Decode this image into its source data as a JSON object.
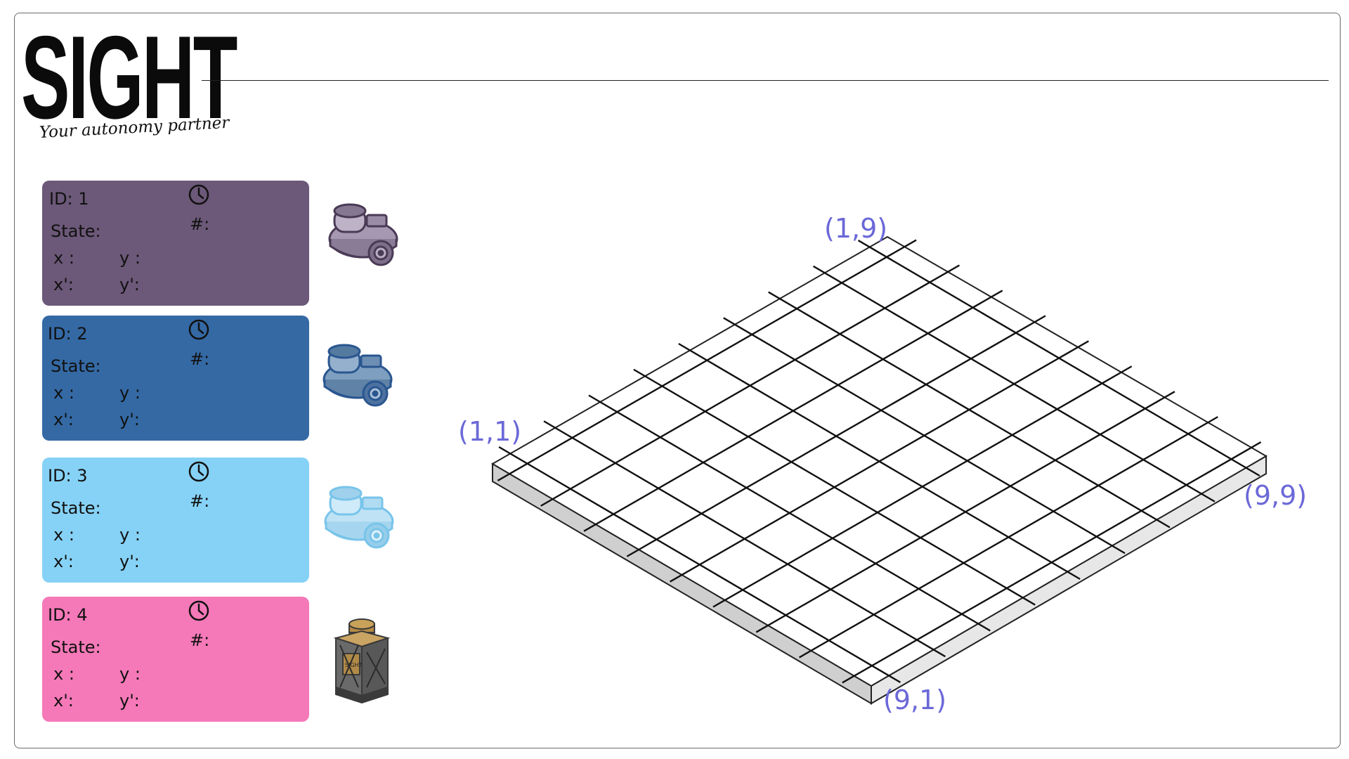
{
  "brand": {
    "logo_text": "SIGHT",
    "tagline": "Your autonomy partner"
  },
  "colors": {
    "robot1": "#6c5878",
    "robot2": "#3469a4",
    "robot3": "#86d2f6",
    "robot4": "#f579b8",
    "corner_label": "#6b68d8",
    "grid_line": "#111111",
    "board_side": "#cfcfcf"
  },
  "robots": [
    {
      "id_label": "ID: 1",
      "state_label": "State:",
      "count_label": "#:",
      "x_label": "x :",
      "y_label": "y :",
      "xp_label": "x':",
      "yp_label": "y':",
      "clock_icon": "clock-icon",
      "image": "turtlebot-purple"
    },
    {
      "id_label": "ID: 2",
      "state_label": "State:",
      "count_label": "#:",
      "x_label": "x :",
      "y_label": "y :",
      "xp_label": "x':",
      "yp_label": "y':",
      "clock_icon": "clock-icon",
      "image": "turtlebot-blue"
    },
    {
      "id_label": "ID: 3",
      "state_label": "State:",
      "count_label": "#:",
      "x_label": "x :",
      "y_label": "y :",
      "xp_label": "x':",
      "yp_label": "y':",
      "clock_icon": "clock-icon",
      "image": "turtlebot-lightblue"
    },
    {
      "id_label": "ID: 4",
      "state_label": "State:",
      "count_label": "#:",
      "x_label": "x :",
      "y_label": "y :",
      "xp_label": "x':",
      "yp_label": "y':",
      "clock_icon": "clock-icon",
      "image": "sight-tower-robot"
    }
  ],
  "grid": {
    "rows": 9,
    "cols": 9,
    "corner_labels": {
      "top": "(1,9)",
      "left": "(1,1)",
      "right": "(9,9)",
      "bottom": "(9,1)"
    }
  }
}
